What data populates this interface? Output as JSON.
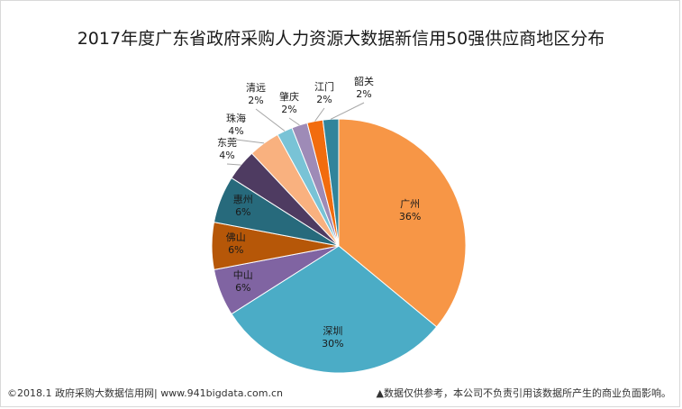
{
  "chart_data": {
    "type": "pie",
    "title": "2017年度广东省政府采购人力资源大数据新信用50强供应商地区分布",
    "slices": [
      {
        "label": "广州",
        "pct_label": "36%",
        "value": 36,
        "color": "#F79646"
      },
      {
        "label": "深圳",
        "pct_label": "30%",
        "value": 30,
        "color": "#4BACC6"
      },
      {
        "label": "中山",
        "pct_label": "6%",
        "value": 6,
        "color": "#8064A2"
      },
      {
        "label": "佛山",
        "pct_label": "6%",
        "value": 6,
        "color": "#B65708"
      },
      {
        "label": "惠州",
        "pct_label": "6%",
        "value": 6,
        "color": "#276A7C"
      },
      {
        "label": "东莞",
        "pct_label": "4%",
        "value": 4,
        "color": "#4E3B61"
      },
      {
        "label": "珠海",
        "pct_label": "4%",
        "value": 4,
        "color": "#F9B17F"
      },
      {
        "label": "清远",
        "pct_label": "2%",
        "value": 2,
        "color": "#79C3D6"
      },
      {
        "label": "肇庆",
        "pct_label": "2%",
        "value": 2,
        "color": "#9E8BB7"
      },
      {
        "label": "江门",
        "pct_label": "2%",
        "value": 2,
        "color": "#F26C0E"
      },
      {
        "label": "韶关",
        "pct_label": "2%",
        "value": 2,
        "color": "#31849B"
      }
    ]
  },
  "footer": {
    "left": "©2018.1 政府采购大数据信用网| www.941bigdata.com.cn",
    "right": "▲数据仅供参考，本公司不负责引用该数据所产生的商业负面影响。"
  }
}
